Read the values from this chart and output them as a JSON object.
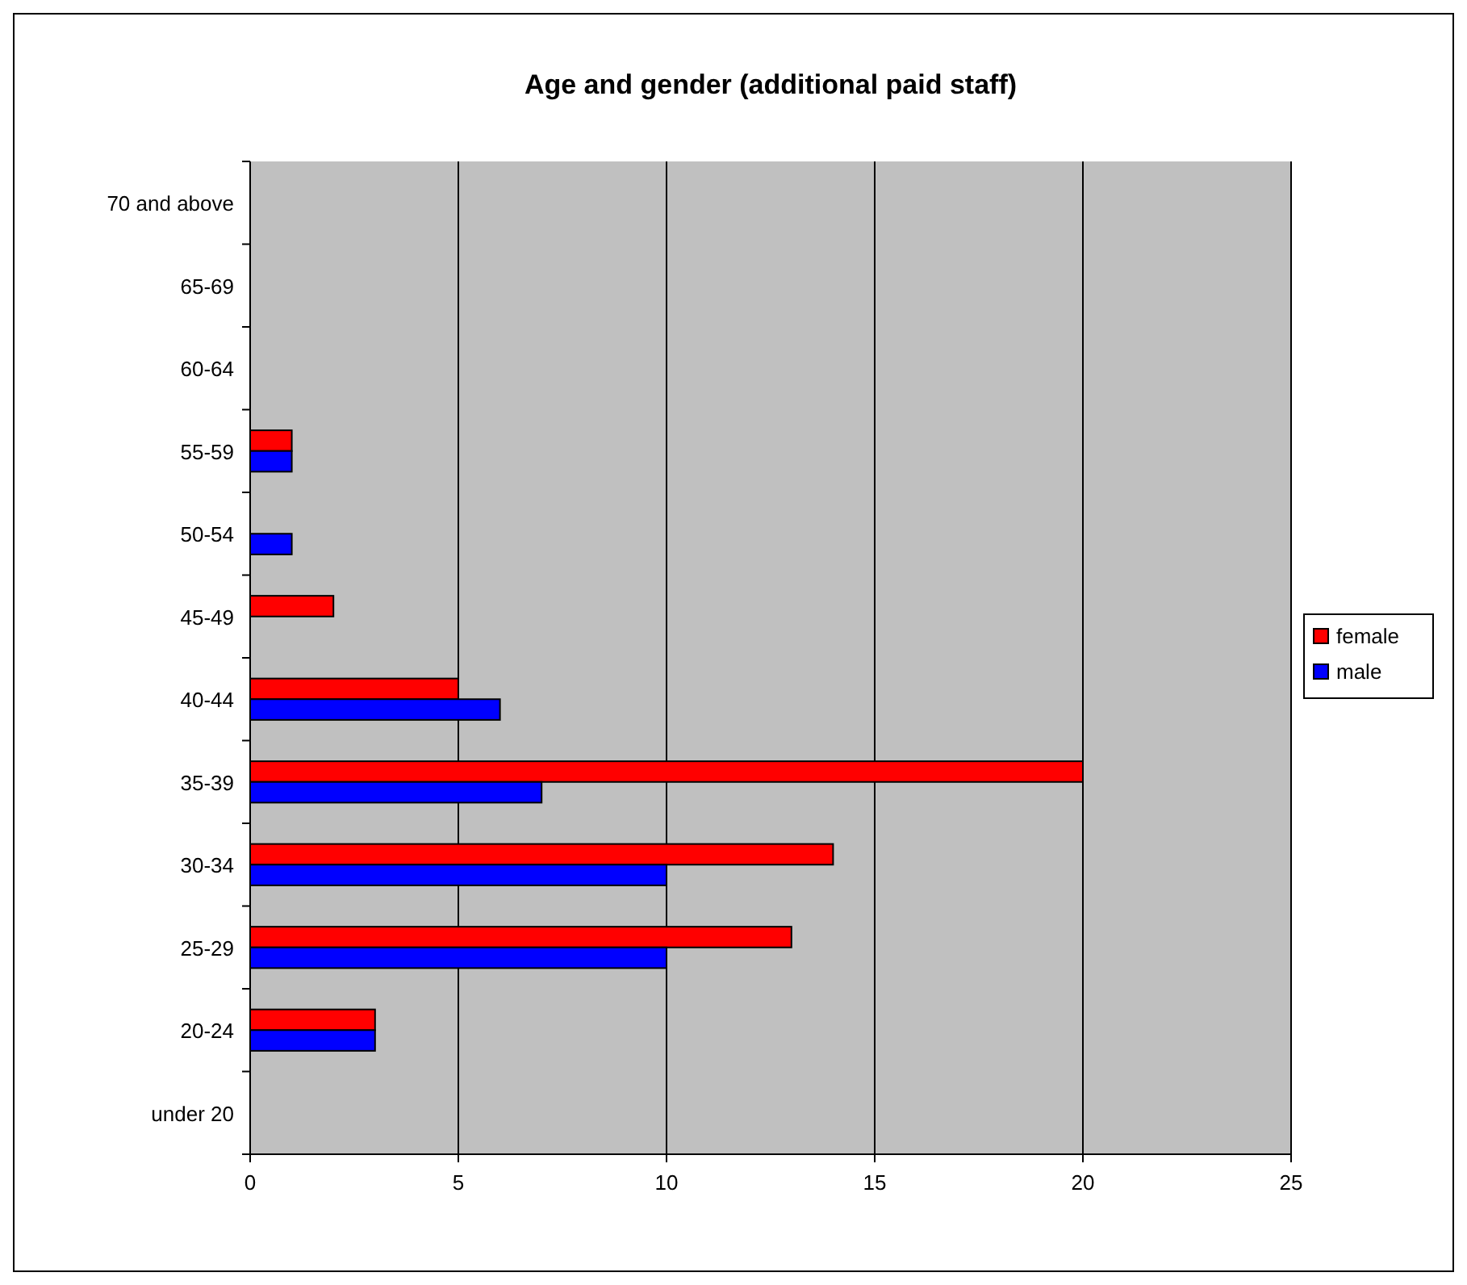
{
  "chart_data": {
    "type": "bar",
    "orientation": "horizontal",
    "title": "Age and gender (additional paid staff)",
    "categories": [
      "70 and above",
      "65-69",
      "60-64",
      "55-59",
      "50-54",
      "45-49",
      "40-44",
      "35-39",
      "30-34",
      "25-29",
      "20-24",
      "under 20"
    ],
    "series": [
      {
        "name": "female",
        "color": "#ff0000",
        "values": [
          0,
          0,
          0,
          1,
          0,
          2,
          5,
          20,
          14,
          13,
          3,
          0
        ]
      },
      {
        "name": "male",
        "color": "#0000ff",
        "values": [
          0,
          0,
          0,
          1,
          1,
          0,
          6,
          7,
          10,
          10,
          3,
          0
        ]
      }
    ],
    "xlim": [
      0,
      25
    ],
    "xticks": [
      0,
      5,
      10,
      15,
      20,
      25
    ],
    "grid": "x",
    "legend": "right"
  }
}
